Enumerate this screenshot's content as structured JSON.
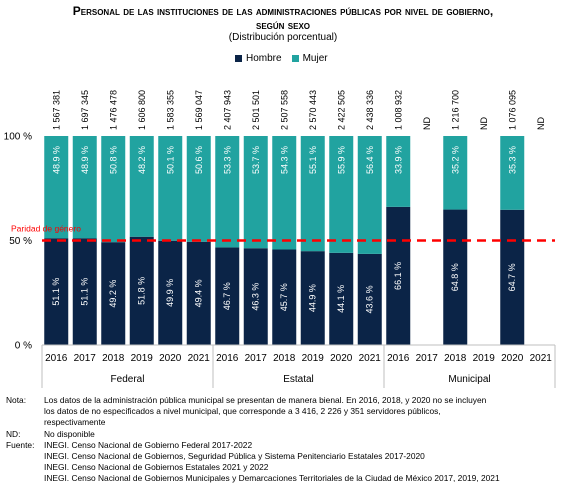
{
  "title_line1": "Personal de las instituciones de las administraciones públicas por nivel de gobierno,",
  "title_line2": "según sexo",
  "subtitle": "(Distribución porcentual)",
  "colors": {
    "hombre": "#0b2447",
    "mujer": "#21a3a0",
    "parity": "#ff0000"
  },
  "chart_data": {
    "type": "bar",
    "stacked": true,
    "legend": [
      "Hombre",
      "Mujer"
    ],
    "legend_position": "top",
    "y_ticks": [
      "0 %",
      "50 %",
      "100 %"
    ],
    "ylim": [
      0,
      100
    ],
    "parity_label": "Paridad de género",
    "parity_value": 50,
    "groups": [
      {
        "name": "Federal",
        "years": [
          "2016",
          "2017",
          "2018",
          "2019",
          "2020",
          "2021"
        ],
        "hombre": [
          51.1,
          51.1,
          49.2,
          51.8,
          49.9,
          49.4
        ],
        "mujer": [
          48.9,
          48.9,
          50.8,
          48.2,
          50.1,
          50.6
        ],
        "hombre_labels": [
          "51.1 %",
          "51.1 %",
          "49.2 %",
          "51.8 %",
          "49.9 %",
          "49.4 %"
        ],
        "mujer_labels": [
          "48.9 %",
          "48.9 %",
          "50.8 %",
          "48.2 %",
          "50.1 %",
          "50.6 %"
        ],
        "totals": [
          "1 567 381",
          "1 697 345",
          "1 476 478",
          "1 606 800",
          "1 583 355",
          "1 569 047"
        ]
      },
      {
        "name": "Estatal",
        "years": [
          "2016",
          "2017",
          "2018",
          "2019",
          "2020",
          "2021"
        ],
        "hombre": [
          46.7,
          46.3,
          45.7,
          44.9,
          44.1,
          43.6
        ],
        "mujer": [
          53.3,
          53.7,
          54.3,
          55.1,
          55.9,
          56.4
        ],
        "hombre_labels": [
          "46.7 %",
          "46.3 %",
          "45.7 %",
          "44.9 %",
          "44.1 %",
          "43.6 %"
        ],
        "mujer_labels": [
          "53.3 %",
          "53.7 %",
          "54.3 %",
          "55.1 %",
          "55.9 %",
          "56.4 %"
        ],
        "totals": [
          "2 407 943",
          "2 501 501",
          "2 507 558",
          "2 570 443",
          "2 422 505",
          "2 438 336"
        ]
      },
      {
        "name": "Municipal",
        "years": [
          "2016",
          "2017",
          "2018",
          "2019",
          "2020",
          "2021"
        ],
        "hombre": [
          66.1,
          null,
          64.8,
          null,
          64.7,
          null
        ],
        "mujer": [
          33.9,
          null,
          35.2,
          null,
          35.3,
          null
        ],
        "hombre_labels": [
          "66.1 %",
          "",
          "64.8 %",
          "",
          "64.7 %",
          ""
        ],
        "mujer_labels": [
          "33.9 %",
          "",
          "35.2 %",
          "",
          "35.3 %",
          ""
        ],
        "totals": [
          "1 008 932",
          "ND",
          "1 216 700",
          "ND",
          "1 076 095",
          "ND"
        ]
      }
    ]
  },
  "notes": [
    {
      "label": "Nota:",
      "text": "Los datos de la administración pública municipal se presentan de manera bienal. En 2016, 2018, y 2020 no se incluyen"
    },
    {
      "label": "",
      "text": "los datos de no especificados a nivel municipal, que corresponde a 3 416, 2 226 y 351 servidores públicos,"
    },
    {
      "label": "",
      "text": "respectivamente"
    },
    {
      "label": "ND:",
      "text": "No disponible"
    },
    {
      "label": "Fuente:",
      "text": "INEGI. Censo Nacional de Gobierno Federal 2017-2022"
    },
    {
      "label": "",
      "text": "INEGI. Censo Nacional de Gobiernos, Seguridad Pública y Sistema Penitenciario Estatales 2017-2020"
    },
    {
      "label": "",
      "text": "INEGI. Censo Nacional de Gobiernos Estatales 2021 y 2022"
    },
    {
      "label": "",
      "text": "INEGI. Censo Nacional de Gobiernos Municipales y Demarcaciones Territoriales de la Ciudad de México 2017, 2019, 2021"
    }
  ]
}
